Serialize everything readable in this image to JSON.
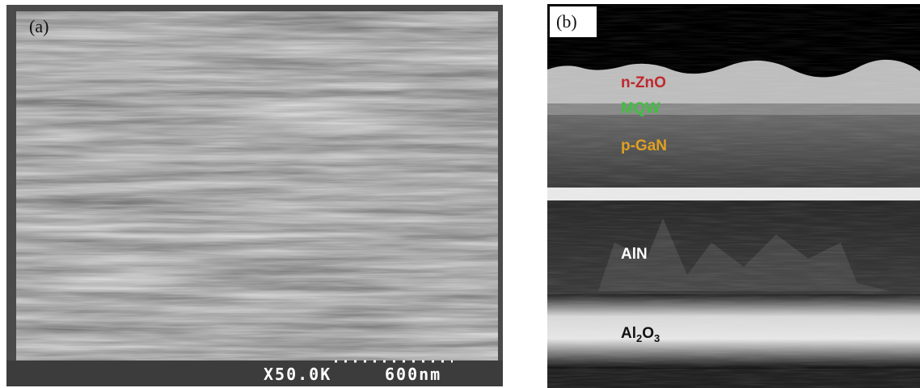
{
  "panel_a": {
    "label": "(a)",
    "magnification": "X50.0K",
    "scale_bar": "600nm"
  },
  "panel_b": {
    "label": "(b)",
    "layers": [
      "n-ZnO",
      "MQW",
      "p-GaN",
      "AlN"
    ],
    "substrate": {
      "parts": [
        "Al",
        "2",
        "O",
        "3"
      ]
    }
  }
}
